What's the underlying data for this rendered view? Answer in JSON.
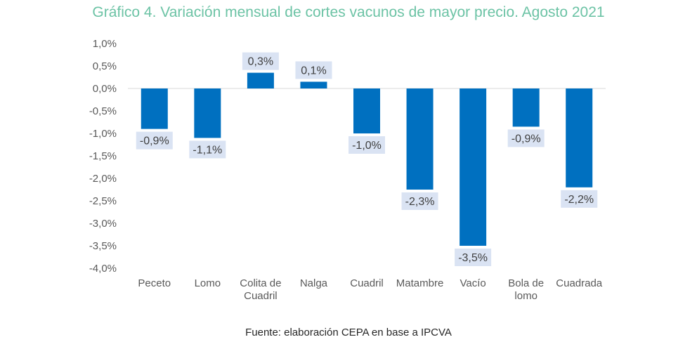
{
  "chart_data": {
    "type": "bar",
    "title": "Gráfico 4. Variación mensual de cortes vacunos de mayor precio. Agosto 2021",
    "source": "Fuente: elaboración CEPA en base a IPCVA",
    "categories": [
      [
        "Peceto"
      ],
      [
        "Lomo"
      ],
      [
        "Colita de",
        "Cuadril"
      ],
      [
        "Nalga"
      ],
      [
        "Cuadril"
      ],
      [
        "Matambre"
      ],
      [
        "Vacío"
      ],
      [
        "Bola de",
        "lomo"
      ],
      [
        "Cuadrada"
      ]
    ],
    "values": [
      -0.9,
      -1.1,
      0.35,
      0.15,
      -1.0,
      -2.25,
      -3.5,
      -0.85,
      -2.2
    ],
    "data_labels": [
      "-0,9%",
      "-1,1%",
      "0,3%",
      "0,1%",
      "-1,0%",
      "-2,3%",
      "-3,5%",
      "-0,9%",
      "-2,2%"
    ],
    "y_ticks": [
      1.0,
      0.5,
      0.0,
      -0.5,
      -1.0,
      -1.5,
      -2.0,
      -2.5,
      -3.0,
      -3.5,
      -4.0
    ],
    "y_tick_labels": [
      "1,0%",
      "0,5%",
      "0,0%",
      "-0,5%",
      "-1,0%",
      "-1,5%",
      "-2,0%",
      "-2,5%",
      "-3,0%",
      "-3,5%",
      "-4,0%"
    ],
    "ylim": [
      -4.0,
      1.0
    ],
    "xlabel": "",
    "ylabel": "",
    "grid": false,
    "legend": "none",
    "colors": {
      "bar": "#0070c0",
      "label_bg": "#dae3f3",
      "title": "#6cc3a5",
      "axis_text": "#595959",
      "zero_line": "#d9d9d9"
    }
  }
}
